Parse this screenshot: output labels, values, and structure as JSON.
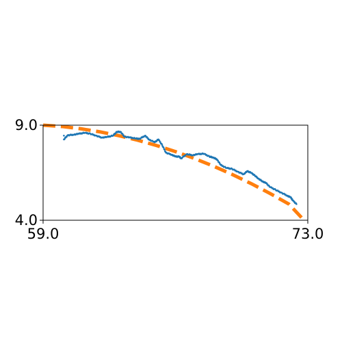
{
  "chart_data": {
    "type": "scatter",
    "title": "",
    "xlabel": "",
    "ylabel": "",
    "xlim": [
      59.0,
      73.0
    ],
    "ylim": [
      4.0,
      9.0
    ],
    "x_ticks": [
      59.0,
      73.0
    ],
    "y_ticks": [
      4.0,
      9.0
    ],
    "x_tick_labels": [
      "59.0",
      "73.0"
    ],
    "y_tick_labels": [
      "4.0",
      "9.0"
    ],
    "grid": false,
    "series": [
      {
        "kind": "scatter",
        "color": "#1f77b4",
        "points": [
          [
            60.1,
            8.45
          ],
          [
            60.1,
            8.25
          ],
          [
            60.3,
            8.47
          ],
          [
            60.6,
            8.5
          ],
          [
            60.9,
            8.55
          ],
          [
            61.2,
            8.6
          ],
          [
            61.5,
            8.55
          ],
          [
            61.8,
            8.45
          ],
          [
            62.1,
            8.35
          ],
          [
            62.4,
            8.38
          ],
          [
            62.7,
            8.45
          ],
          [
            62.9,
            8.65
          ],
          [
            63.1,
            8.65
          ],
          [
            63.3,
            8.4
          ],
          [
            63.6,
            8.35
          ],
          [
            63.9,
            8.3
          ],
          [
            64.1,
            8.28
          ],
          [
            64.4,
            8.45
          ],
          [
            64.6,
            8.25
          ],
          [
            64.9,
            8.1
          ],
          [
            65.1,
            8.25
          ],
          [
            65.3,
            7.95
          ],
          [
            65.5,
            7.55
          ],
          [
            65.8,
            7.45
          ],
          [
            66.0,
            7.35
          ],
          [
            66.2,
            7.35
          ],
          [
            66.3,
            7.25
          ],
          [
            66.6,
            7.48
          ],
          [
            66.9,
            7.42
          ],
          [
            67.2,
            7.48
          ],
          [
            67.5,
            7.5
          ],
          [
            67.8,
            7.35
          ],
          [
            68.0,
            7.3
          ],
          [
            68.2,
            7.2
          ],
          [
            68.4,
            6.9
          ],
          [
            68.7,
            6.75
          ],
          [
            69.0,
            6.7
          ],
          [
            69.3,
            6.55
          ],
          [
            69.6,
            6.42
          ],
          [
            69.8,
            6.58
          ],
          [
            70.0,
            6.5
          ],
          [
            70.2,
            6.35
          ],
          [
            70.4,
            6.18
          ],
          [
            70.6,
            6.05
          ],
          [
            70.8,
            5.95
          ],
          [
            71.0,
            5.75
          ],
          [
            71.3,
            5.6
          ],
          [
            71.6,
            5.45
          ],
          [
            71.9,
            5.3
          ],
          [
            72.1,
            5.2
          ],
          [
            72.2,
            5.05
          ],
          [
            72.4,
            4.85
          ]
        ]
      },
      {
        "kind": "line",
        "style": "dashed",
        "color": "#ff7f0e",
        "points": [
          [
            59.0,
            9.0
          ],
          [
            60.0,
            8.93
          ],
          [
            61.0,
            8.81
          ],
          [
            62.0,
            8.65
          ],
          [
            63.0,
            8.45
          ],
          [
            64.0,
            8.21
          ],
          [
            65.0,
            7.93
          ],
          [
            66.0,
            7.61
          ],
          [
            67.0,
            7.25
          ],
          [
            68.0,
            6.85
          ],
          [
            69.0,
            6.41
          ],
          [
            70.0,
            5.93
          ],
          [
            71.0,
            5.41
          ],
          [
            72.0,
            4.85
          ],
          [
            72.8,
            4.0
          ]
        ]
      }
    ]
  }
}
